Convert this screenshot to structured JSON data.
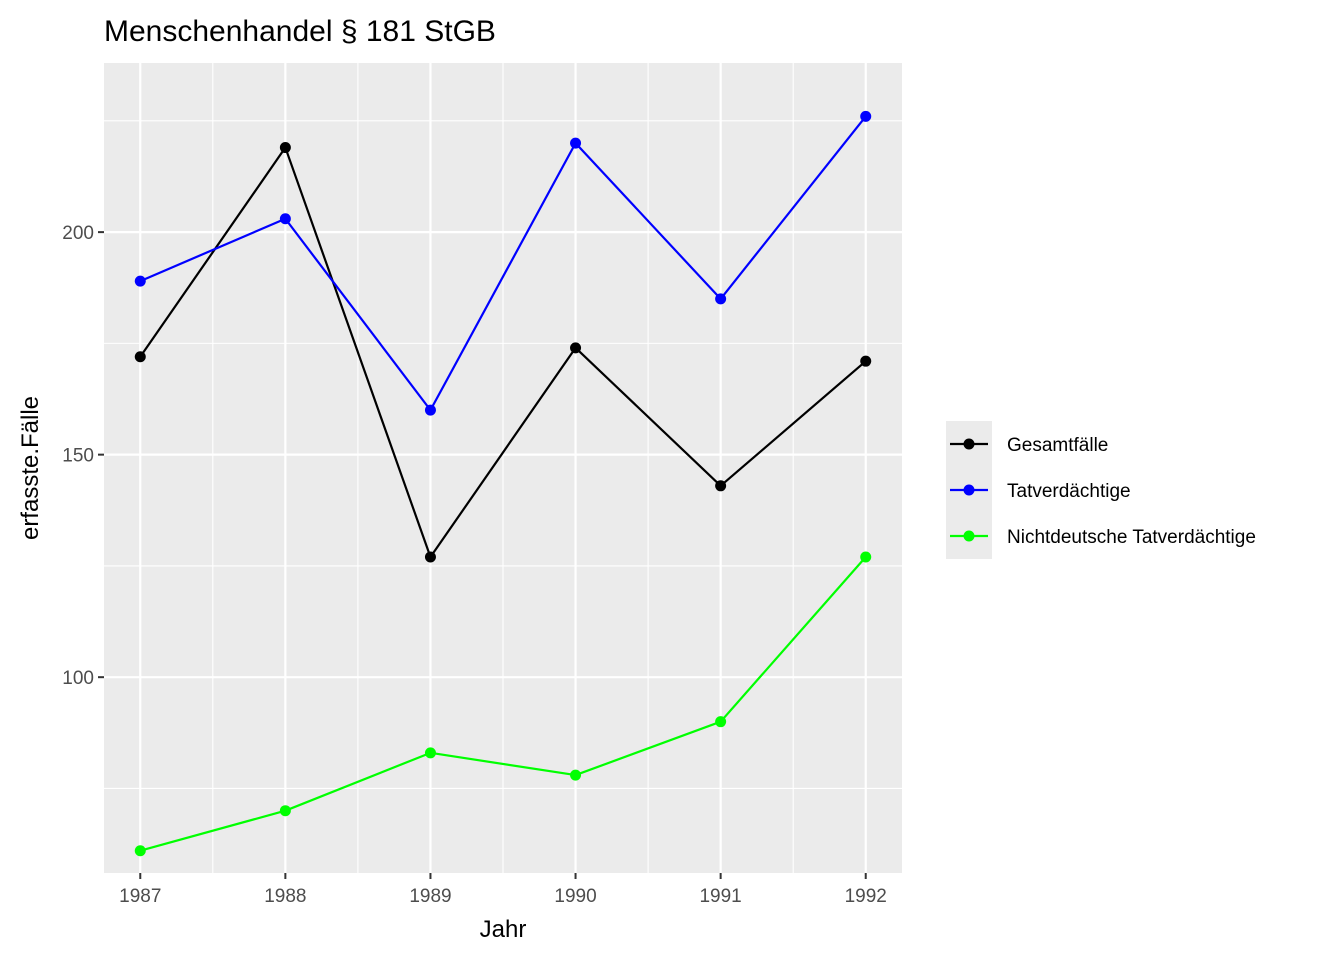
{
  "chart_data": {
    "type": "line",
    "title": "Menschenhandel § 181 StGB",
    "xlabel": "Jahr",
    "ylabel": "erfasste.Fälle",
    "x": [
      1987,
      1988,
      1989,
      1990,
      1991,
      1992
    ],
    "xlim": [
      1986.75,
      1992.25
    ],
    "ylim": [
      56,
      238
    ],
    "y_major_ticks": [
      100,
      150,
      200
    ],
    "y_minor_ticks": [
      75,
      125,
      175,
      225
    ],
    "grid": true,
    "legend_position": "right",
    "series": [
      {
        "name": "Gesamtfälle",
        "color": "#000000",
        "values": [
          172,
          219,
          127,
          174,
          143,
          171
        ]
      },
      {
        "name": "Tatverdächtige",
        "color": "#0000ff",
        "values": [
          189,
          203,
          160,
          220,
          185,
          226
        ]
      },
      {
        "name": "Nichtdeutsche Tatverdächtige",
        "color": "#00ff00",
        "values": [
          61,
          70,
          83,
          78,
          90,
          127
        ]
      }
    ]
  }
}
